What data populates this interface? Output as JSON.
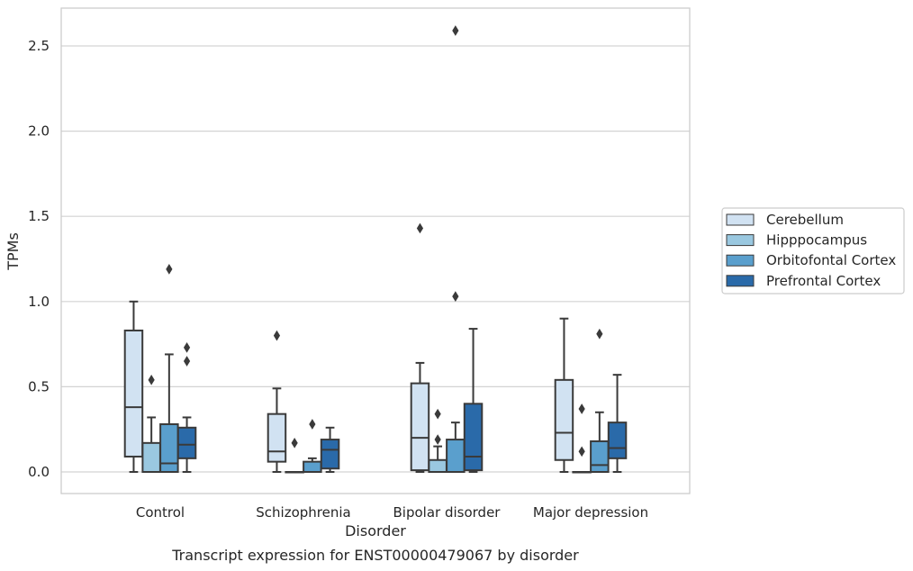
{
  "chart_data": {
    "type": "box",
    "caption": "Transcript expression for ENST00000479067 by disorder",
    "xlabel": "Disorder",
    "ylabel": "TPMs",
    "ylim": [
      -0.125,
      2.725
    ],
    "yticks": [
      "0.0",
      "0.5",
      "1.0",
      "1.5",
      "2.0",
      "2.5"
    ],
    "ytick_values": [
      0,
      0.5,
      1.0,
      1.5,
      2.0,
      2.5
    ],
    "grid": "horizontal",
    "legend_position": "right",
    "categories": [
      "Control",
      "Schizophrenia",
      "Bipolar disorder",
      "Major depression"
    ],
    "series": [
      {
        "name": "Cerebellum",
        "color": "#d1e2f2",
        "boxes": [
          {
            "whislo": 0.0,
            "q1": 0.09,
            "med": 0.38,
            "q3": 0.83,
            "whishi": 1.0,
            "fliers": []
          },
          {
            "whislo": 0.0,
            "q1": 0.06,
            "med": 0.12,
            "q3": 0.34,
            "whishi": 0.49,
            "fliers": [
              0.8
            ]
          },
          {
            "whislo": 0.0,
            "q1": 0.01,
            "med": 0.2,
            "q3": 0.52,
            "whishi": 0.64,
            "fliers": [
              1.43
            ]
          },
          {
            "whislo": 0.0,
            "q1": 0.07,
            "med": 0.23,
            "q3": 0.54,
            "whishi": 0.9,
            "fliers": []
          }
        ]
      },
      {
        "name": "Hipppocampus",
        "color": "#9ac8e0",
        "boxes": [
          {
            "whislo": 0.0,
            "q1": 0.0,
            "med": 0.0,
            "q3": 0.17,
            "whishi": 0.32,
            "fliers": [
              0.54
            ]
          },
          {
            "whislo": 0.0,
            "q1": 0.0,
            "med": 0.0,
            "q3": 0.0,
            "whishi": 0.0,
            "fliers": [
              0.17
            ]
          },
          {
            "whislo": 0.0,
            "q1": 0.0,
            "med": 0.0,
            "q3": 0.07,
            "whishi": 0.15,
            "fliers": [
              0.19,
              0.34
            ]
          },
          {
            "whislo": 0.0,
            "q1": 0.0,
            "med": 0.0,
            "q3": 0.0,
            "whishi": 0.0,
            "fliers": [
              0.12,
              0.37
            ]
          }
        ]
      },
      {
        "name": "Orbitofontal Cortex",
        "color": "#5a9fcd",
        "boxes": [
          {
            "whislo": 0.0,
            "q1": 0.0,
            "med": 0.05,
            "q3": 0.28,
            "whishi": 0.69,
            "fliers": [
              1.19
            ]
          },
          {
            "whislo": 0.0,
            "q1": 0.0,
            "med": 0.0,
            "q3": 0.06,
            "whishi": 0.08,
            "fliers": [
              0.28
            ]
          },
          {
            "whislo": 0.0,
            "q1": 0.0,
            "med": 0.0,
            "q3": 0.19,
            "whishi": 0.29,
            "fliers": [
              1.03,
              2.59
            ]
          },
          {
            "whislo": 0.0,
            "q1": 0.0,
            "med": 0.04,
            "q3": 0.18,
            "whishi": 0.35,
            "fliers": [
              0.81
            ]
          }
        ]
      },
      {
        "name": "Prefrontal Cortex",
        "color": "#2a6aa9",
        "boxes": [
          {
            "whislo": 0.0,
            "q1": 0.08,
            "med": 0.16,
            "q3": 0.26,
            "whishi": 0.32,
            "fliers": [
              0.65,
              0.73
            ]
          },
          {
            "whislo": 0.0,
            "q1": 0.02,
            "med": 0.13,
            "q3": 0.19,
            "whishi": 0.26,
            "fliers": []
          },
          {
            "whislo": 0.0,
            "q1": 0.01,
            "med": 0.09,
            "q3": 0.4,
            "whishi": 0.84,
            "fliers": []
          },
          {
            "whislo": 0.0,
            "q1": 0.08,
            "med": 0.14,
            "q3": 0.29,
            "whishi": 0.57,
            "fliers": []
          }
        ]
      }
    ]
  }
}
